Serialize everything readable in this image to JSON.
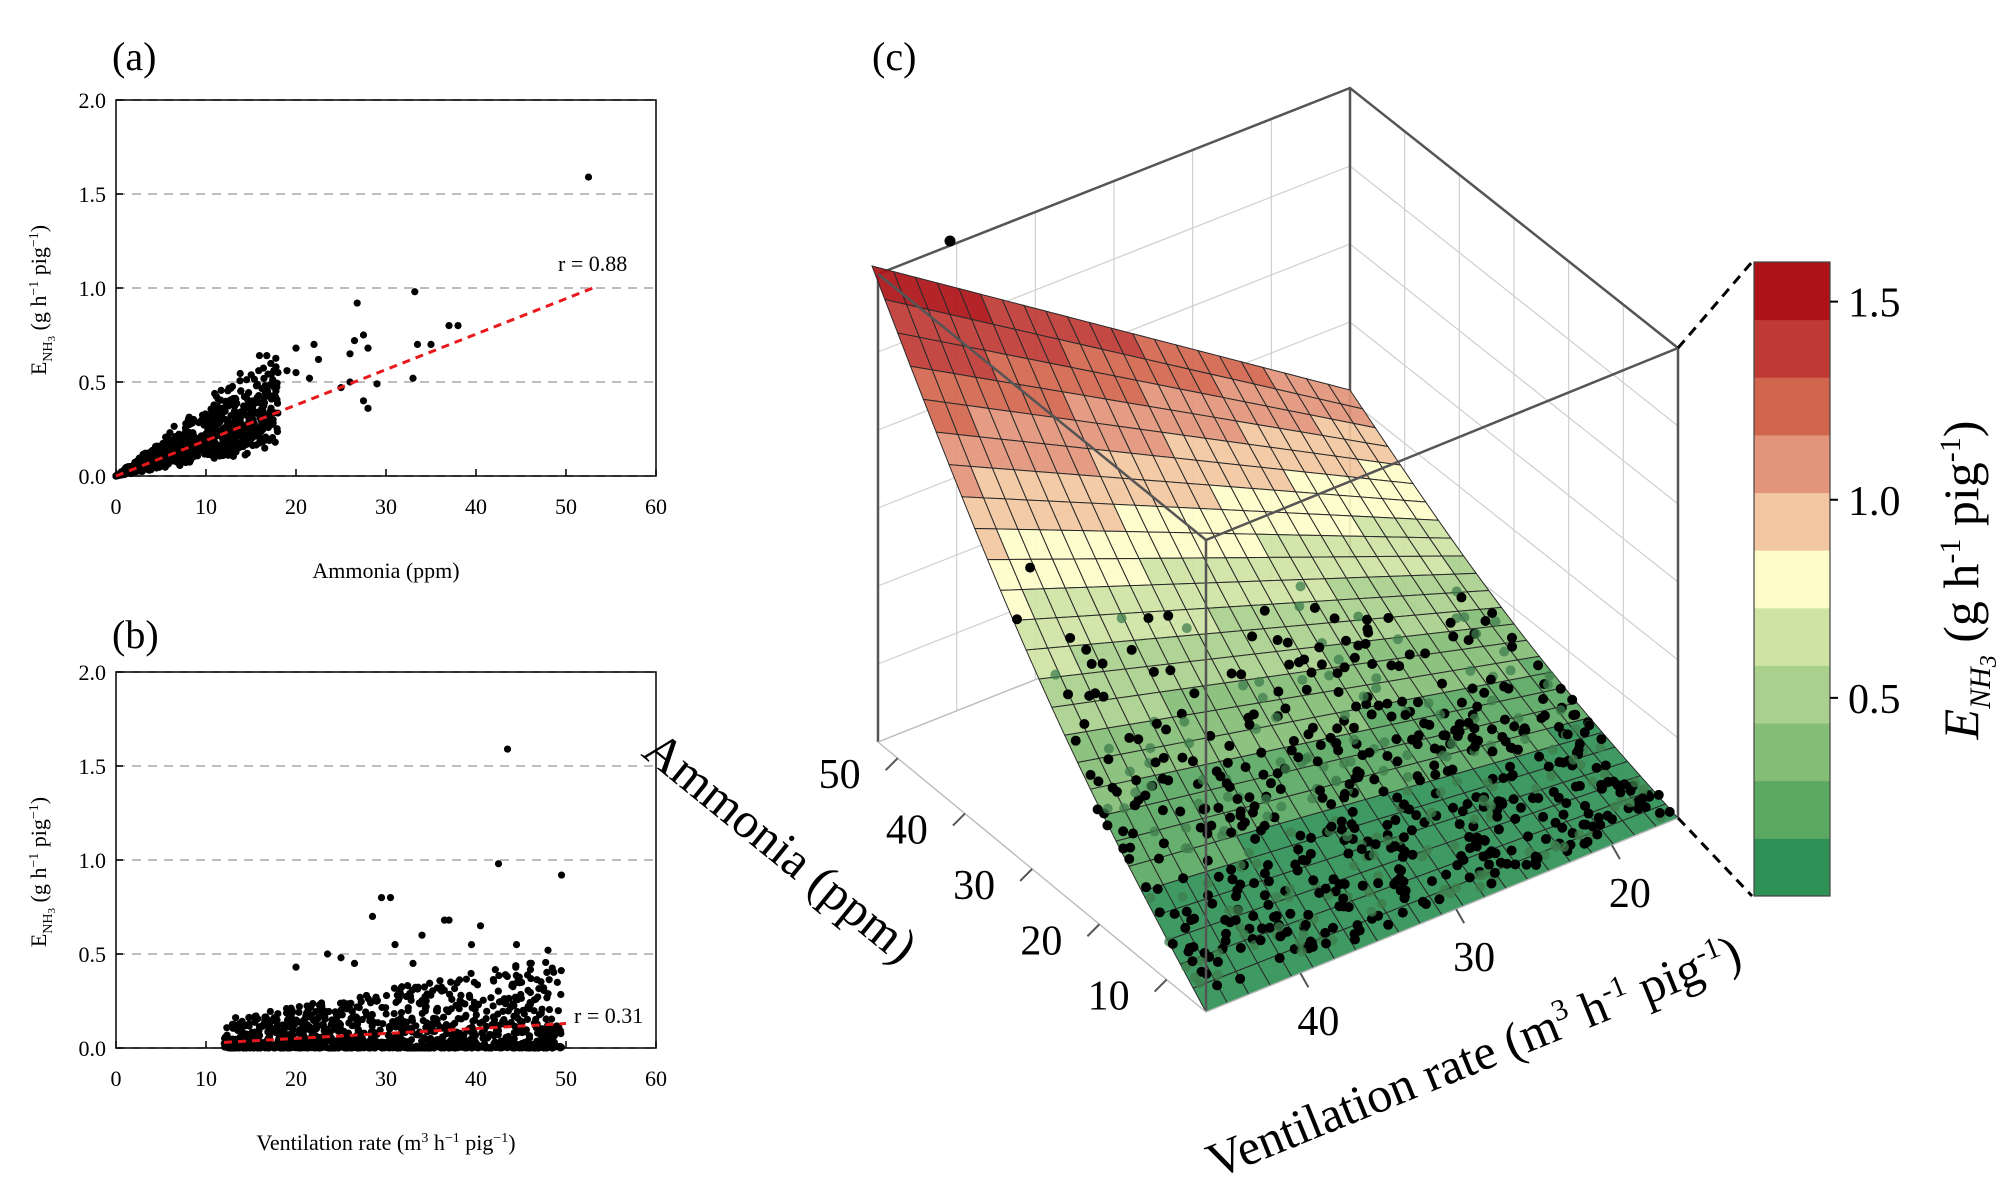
{
  "chart_data": [
    {
      "panel": "(a)",
      "type": "scatter",
      "xlabel": "Ammonia (ppm)",
      "ylabel_main": "E",
      "ylabel_sub": "NH",
      "ylabel_sub2": "3",
      "ylabel_units": "(g h",
      "ylabel_units_exp1": "−1",
      "ylabel_units_mid": " pig",
      "ylabel_units_exp2": "−1",
      "ylabel_units_end": ")",
      "xlim": [
        0,
        60
      ],
      "ylim": [
        0,
        2.0
      ],
      "xticks": [
        0,
        10,
        20,
        30,
        40,
        50,
        60
      ],
      "yticks": [
        0.0,
        0.5,
        1.0,
        1.5,
        2.0
      ],
      "ytick_labels": [
        "0.0",
        "0.5",
        "1.0",
        "1.5",
        "2.0"
      ],
      "grid": "horizontal dashed",
      "fit_line": {
        "x": [
          0,
          53
        ],
        "y": [
          0,
          1.0
        ],
        "color": "#e8191c",
        "style": "dashed"
      },
      "annotation": "r = 0.88",
      "points": [
        [
          52.5,
          1.59
        ],
        [
          33.2,
          0.98
        ],
        [
          26.8,
          0.92
        ],
        [
          37.0,
          0.8
        ],
        [
          38.0,
          0.8
        ],
        [
          27.5,
          0.75
        ],
        [
          26.5,
          0.72
        ],
        [
          22.0,
          0.7
        ],
        [
          33.5,
          0.7
        ],
        [
          35.0,
          0.7
        ],
        [
          28.0,
          0.68
        ],
        [
          20.0,
          0.68
        ],
        [
          26.0,
          0.65
        ],
        [
          22.5,
          0.62
        ],
        [
          19.0,
          0.56
        ],
        [
          18.0,
          0.55
        ],
        [
          20.0,
          0.55
        ],
        [
          21.5,
          0.52
        ],
        [
          26.0,
          0.5
        ],
        [
          29.0,
          0.49
        ],
        [
          33.0,
          0.52
        ],
        [
          25.0,
          0.47
        ],
        [
          27.5,
          0.4
        ],
        [
          28.0,
          0.36
        ]
      ]
    },
    {
      "panel": "(b)",
      "type": "scatter",
      "xlabel_main": "Ventilation rate (m",
      "xlabel_exp": "3",
      "xlabel_mid": " h",
      "xlabel_exp2": "−1",
      "xlabel_mid2": " pig",
      "xlabel_exp3": "−1",
      "xlabel_end": ")",
      "ylabel_main": "E",
      "ylabel_sub": "NH",
      "ylabel_sub2": "3",
      "ylabel_units": "(g h",
      "ylabel_units_exp1": "−1",
      "ylabel_units_mid": " pig",
      "ylabel_units_exp2": "−1",
      "ylabel_units_end": ")",
      "xlim": [
        0,
        60
      ],
      "ylim": [
        0,
        2.0
      ],
      "xticks": [
        0,
        10,
        20,
        30,
        40,
        50,
        60
      ],
      "yticks": [
        0.0,
        0.5,
        1.0,
        1.5,
        2.0
      ],
      "ytick_labels": [
        "0.0",
        "0.5",
        "1.0",
        "1.5",
        "2.0"
      ],
      "grid": "horizontal dashed",
      "fit_line": {
        "x": [
          12,
          50
        ],
        "y": [
          0.03,
          0.13
        ],
        "color": "#e8191c",
        "style": "dashed"
      },
      "annotation": "r = 0.31",
      "points": [
        [
          43.5,
          1.59
        ],
        [
          42.5,
          0.98
        ],
        [
          49.5,
          0.92
        ],
        [
          30.5,
          0.8
        ],
        [
          29.5,
          0.8
        ],
        [
          36.5,
          0.68
        ],
        [
          37.0,
          0.68
        ],
        [
          40.5,
          0.65
        ],
        [
          28.5,
          0.7
        ],
        [
          39.5,
          0.55
        ],
        [
          34.0,
          0.6
        ],
        [
          44.5,
          0.55
        ],
        [
          48.0,
          0.52
        ],
        [
          23.5,
          0.5
        ],
        [
          25.0,
          0.48
        ],
        [
          31.0,
          0.55
        ],
        [
          26.5,
          0.45
        ],
        [
          20.0,
          0.43
        ],
        [
          33.0,
          0.45
        ],
        [
          46.0,
          0.45
        ]
      ]
    },
    {
      "panel": "(c)",
      "type": "surface3d",
      "xlabel": "Ammonia (ppm)",
      "ylabel_main": "Ventilation rate (m",
      "ylabel_exp": "3",
      "ylabel_mid": " h",
      "ylabel_exp2": "-1",
      "ylabel_mid2": " pig",
      "ylabel_exp3": "-1",
      "ylabel_end": ")",
      "ammonia_ticks": [
        10,
        20,
        30,
        40,
        50
      ],
      "ventilation_ticks": [
        20,
        30,
        40
      ],
      "colorbar": {
        "label_main": "E",
        "label_sub": "NH",
        "label_sub2": "3",
        "label_units": "(g h",
        "label_exp1": "-1",
        "label_mid": " pig",
        "label_exp2": "-1",
        "label_end": ")",
        "ticks": [
          0.5,
          1.0,
          1.5
        ],
        "tick_labels": [
          "0.5",
          "1.0",
          "1.5"
        ],
        "range": [
          0.0,
          1.6
        ],
        "colors": [
          "#2e9155",
          "#5aa862",
          "#84bd75",
          "#a9d08c",
          "#cee4a4",
          "#fefdc9",
          "#f2c79f",
          "#e2957a",
          "#d2654e",
          "#bf3a34",
          "#ac1217"
        ]
      }
    }
  ]
}
